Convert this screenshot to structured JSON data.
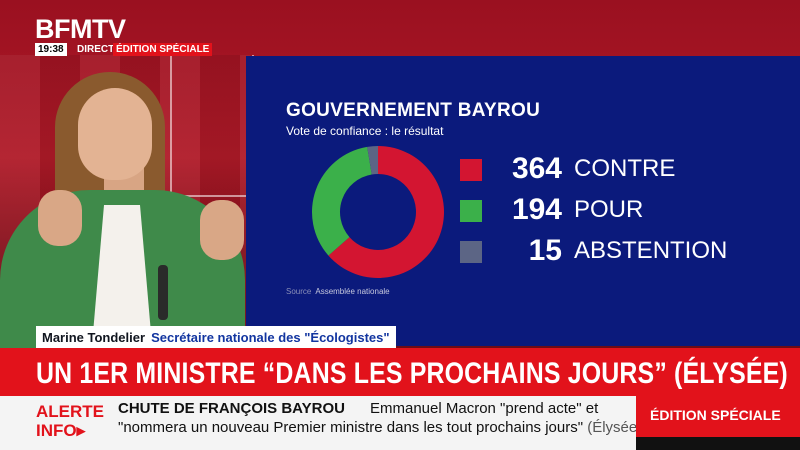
{
  "header": {
    "channel": "BFMTV",
    "time": "19:38",
    "live": "DIRECT",
    "edition": "ÉDITION SPÉCIALE"
  },
  "graphic": {
    "title": "GOUVERNEMENT BAYROU",
    "subtitle": "Vote de confiance : le résultat",
    "source_label": "Source",
    "source": "Assemblée nationale",
    "results": [
      {
        "value": "364",
        "label": "CONTRE",
        "color": "#d31531"
      },
      {
        "value": "194",
        "label": "POUR",
        "color": "#3bb04a"
      },
      {
        "value": "15",
        "label": "ABSTENTION",
        "color": "#5c6585"
      }
    ]
  },
  "chart_data": {
    "type": "pie",
    "title": "GOUVERNEMENT BAYROU",
    "subtitle": "Vote de confiance : le résultat",
    "categories": [
      "CONTRE",
      "POUR",
      "ABSTENTION"
    ],
    "values": [
      364,
      194,
      15
    ],
    "colors": [
      "#d31531",
      "#3bb04a",
      "#5c6585"
    ],
    "donut": true
  },
  "lower_third": {
    "name": "Marine Tondelier",
    "role": "Secrétaire nationale des \"Écologistes\""
  },
  "headline": "UN 1ER MINISTRE “DANS LES PROCHAINS JOURS” (ÉLYSÉE)",
  "ticker": {
    "alert_line1": "ALERTE",
    "alert_line2": "INFO",
    "alert_arrow": "▸",
    "subject": "CHUTE DE FRANÇOIS BAYROU",
    "line1": "Emmanuel Macron \"prend acte\" et",
    "line2": "\"nommera un nouveau Premier ministre dans les tout prochains jours\"",
    "line2_tail": "(Élysée)",
    "edition_badge": "ÉDITION SPÉCIALE"
  }
}
